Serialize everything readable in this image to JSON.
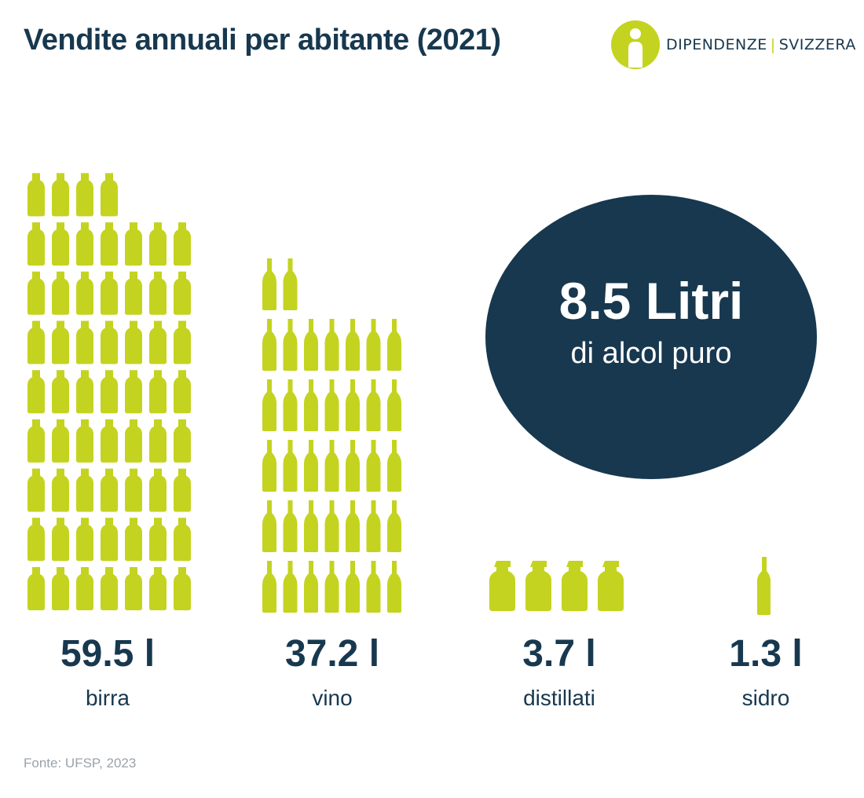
{
  "header": {
    "title": "Vendite annuali per abitante (2021)"
  },
  "logo": {
    "part1": "DIPENDENZE",
    "separator": "|",
    "part2": "SVIZZERA"
  },
  "highlight": {
    "value": "8.5 Litri",
    "label": "di alcol puro"
  },
  "source": "Fonte: UFSP, 2023",
  "colors": {
    "accent": "#c4d31f",
    "navy": "#17384f",
    "source_text": "#9aa3a9"
  },
  "chart_data": {
    "type": "bar",
    "categories": [
      "birra",
      "vino",
      "distillati",
      "sidro"
    ],
    "values": [
      59.5,
      37.2,
      3.7,
      1.3
    ],
    "value_labels": [
      "59.5 l",
      "37.2 l",
      "3.7 l",
      "1.3 l"
    ],
    "unit": "l",
    "icons": [
      "beer-bottle-icon",
      "wine-bottle-icon",
      "spirits-bottle-icon",
      "cider-bottle-icon"
    ]
  }
}
